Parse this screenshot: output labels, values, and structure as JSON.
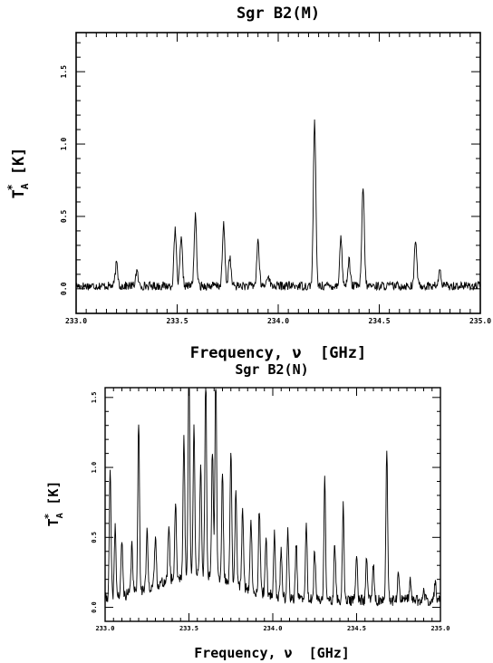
{
  "figure": {
    "background": "#ffffff",
    "ink": "#000000"
  },
  "chart_data": [
    {
      "type": "line",
      "title": "Sgr B2(M)",
      "xlabel": "Frequency, ν  [GHz]",
      "ylabel": "T*A  [K]",
      "ylabel_main": "T",
      "ylabel_sup": "*",
      "ylabel_sub": "A",
      "ylabel_unit": "[K]",
      "xlim": [
        233.0,
        235.0
      ],
      "ylim": [
        -0.17,
        1.77
      ],
      "xticks": [
        233.0,
        233.5,
        234.0,
        234.5,
        235.0
      ],
      "xtick_labels": [
        "233.0",
        "233.5",
        "234.0",
        "234.5",
        "235.0"
      ],
      "yticks": [
        0.0,
        0.5,
        1.0,
        1.5
      ],
      "ytick_labels": [
        "0.0",
        "0.5",
        "1.0",
        "1.5"
      ],
      "grid": false,
      "baseline": 0.02,
      "noise": 0.03,
      "peaks": [
        {
          "x": 233.2,
          "y": 0.17
        },
        {
          "x": 233.3,
          "y": 0.12
        },
        {
          "x": 233.49,
          "y": 0.4
        },
        {
          "x": 233.52,
          "y": 0.34
        },
        {
          "x": 233.59,
          "y": 0.5
        },
        {
          "x": 233.73,
          "y": 0.44
        },
        {
          "x": 233.76,
          "y": 0.22
        },
        {
          "x": 233.9,
          "y": 0.33
        },
        {
          "x": 233.95,
          "y": 0.1
        },
        {
          "x": 234.18,
          "y": 1.16
        },
        {
          "x": 234.31,
          "y": 0.35
        },
        {
          "x": 234.35,
          "y": 0.2
        },
        {
          "x": 234.42,
          "y": 0.7
        },
        {
          "x": 234.68,
          "y": 0.33
        },
        {
          "x": 234.8,
          "y": 0.12
        }
      ]
    },
    {
      "type": "line",
      "title": "Sgr B2(N)",
      "xlabel": "Frequency, ν  [GHz]",
      "ylabel": "T*A  [K]",
      "ylabel_main": "T",
      "ylabel_sup": "*",
      "ylabel_sub": "A",
      "ylabel_unit": "[K]",
      "xlim": [
        233.0,
        235.0
      ],
      "ylim": [
        -0.1,
        1.57
      ],
      "xticks": [
        233.0,
        233.5,
        234.0,
        234.5,
        235.0
      ],
      "xtick_labels": [
        "233.0",
        "233.5",
        "234.0",
        "234.5",
        "235.0"
      ],
      "yticks": [
        0.0,
        0.5,
        1.0,
        1.5
      ],
      "ytick_labels": [
        "0.0",
        "0.5",
        "1.0",
        "1.5"
      ],
      "grid": false,
      "baseline": 0.05,
      "noise": 0.04,
      "peaks": [
        {
          "x": 233.03,
          "y": 0.95
        },
        {
          "x": 233.06,
          "y": 0.55
        },
        {
          "x": 233.1,
          "y": 0.45
        },
        {
          "x": 233.16,
          "y": 0.4
        },
        {
          "x": 233.2,
          "y": 1.27
        },
        {
          "x": 233.25,
          "y": 0.45
        },
        {
          "x": 233.3,
          "y": 0.4
        },
        {
          "x": 233.38,
          "y": 0.45
        },
        {
          "x": 233.42,
          "y": 0.6
        },
        {
          "x": 233.47,
          "y": 1.05
        },
        {
          "x": 233.5,
          "y": 1.58
        },
        {
          "x": 233.53,
          "y": 1.15
        },
        {
          "x": 233.57,
          "y": 0.85
        },
        {
          "x": 233.6,
          "y": 1.5
        },
        {
          "x": 233.64,
          "y": 0.95
        },
        {
          "x": 233.66,
          "y": 1.52
        },
        {
          "x": 233.7,
          "y": 0.8
        },
        {
          "x": 233.75,
          "y": 1.0
        },
        {
          "x": 233.78,
          "y": 0.7
        },
        {
          "x": 233.82,
          "y": 0.6
        },
        {
          "x": 233.87,
          "y": 0.55
        },
        {
          "x": 233.92,
          "y": 0.65
        },
        {
          "x": 233.96,
          "y": 0.45
        },
        {
          "x": 234.01,
          "y": 0.5
        },
        {
          "x": 234.05,
          "y": 0.4
        },
        {
          "x": 234.09,
          "y": 0.55
        },
        {
          "x": 234.14,
          "y": 0.45
        },
        {
          "x": 234.2,
          "y": 0.6
        },
        {
          "x": 234.25,
          "y": 0.4
        },
        {
          "x": 234.31,
          "y": 0.9
        },
        {
          "x": 234.37,
          "y": 0.45
        },
        {
          "x": 234.42,
          "y": 0.72
        },
        {
          "x": 234.5,
          "y": 0.4
        },
        {
          "x": 234.56,
          "y": 0.35
        },
        {
          "x": 234.6,
          "y": 0.3
        },
        {
          "x": 234.68,
          "y": 1.12
        },
        {
          "x": 234.75,
          "y": 0.25
        },
        {
          "x": 234.82,
          "y": 0.2
        },
        {
          "x": 234.9,
          "y": 0.15
        },
        {
          "x": 234.97,
          "y": 0.2
        }
      ]
    }
  ]
}
